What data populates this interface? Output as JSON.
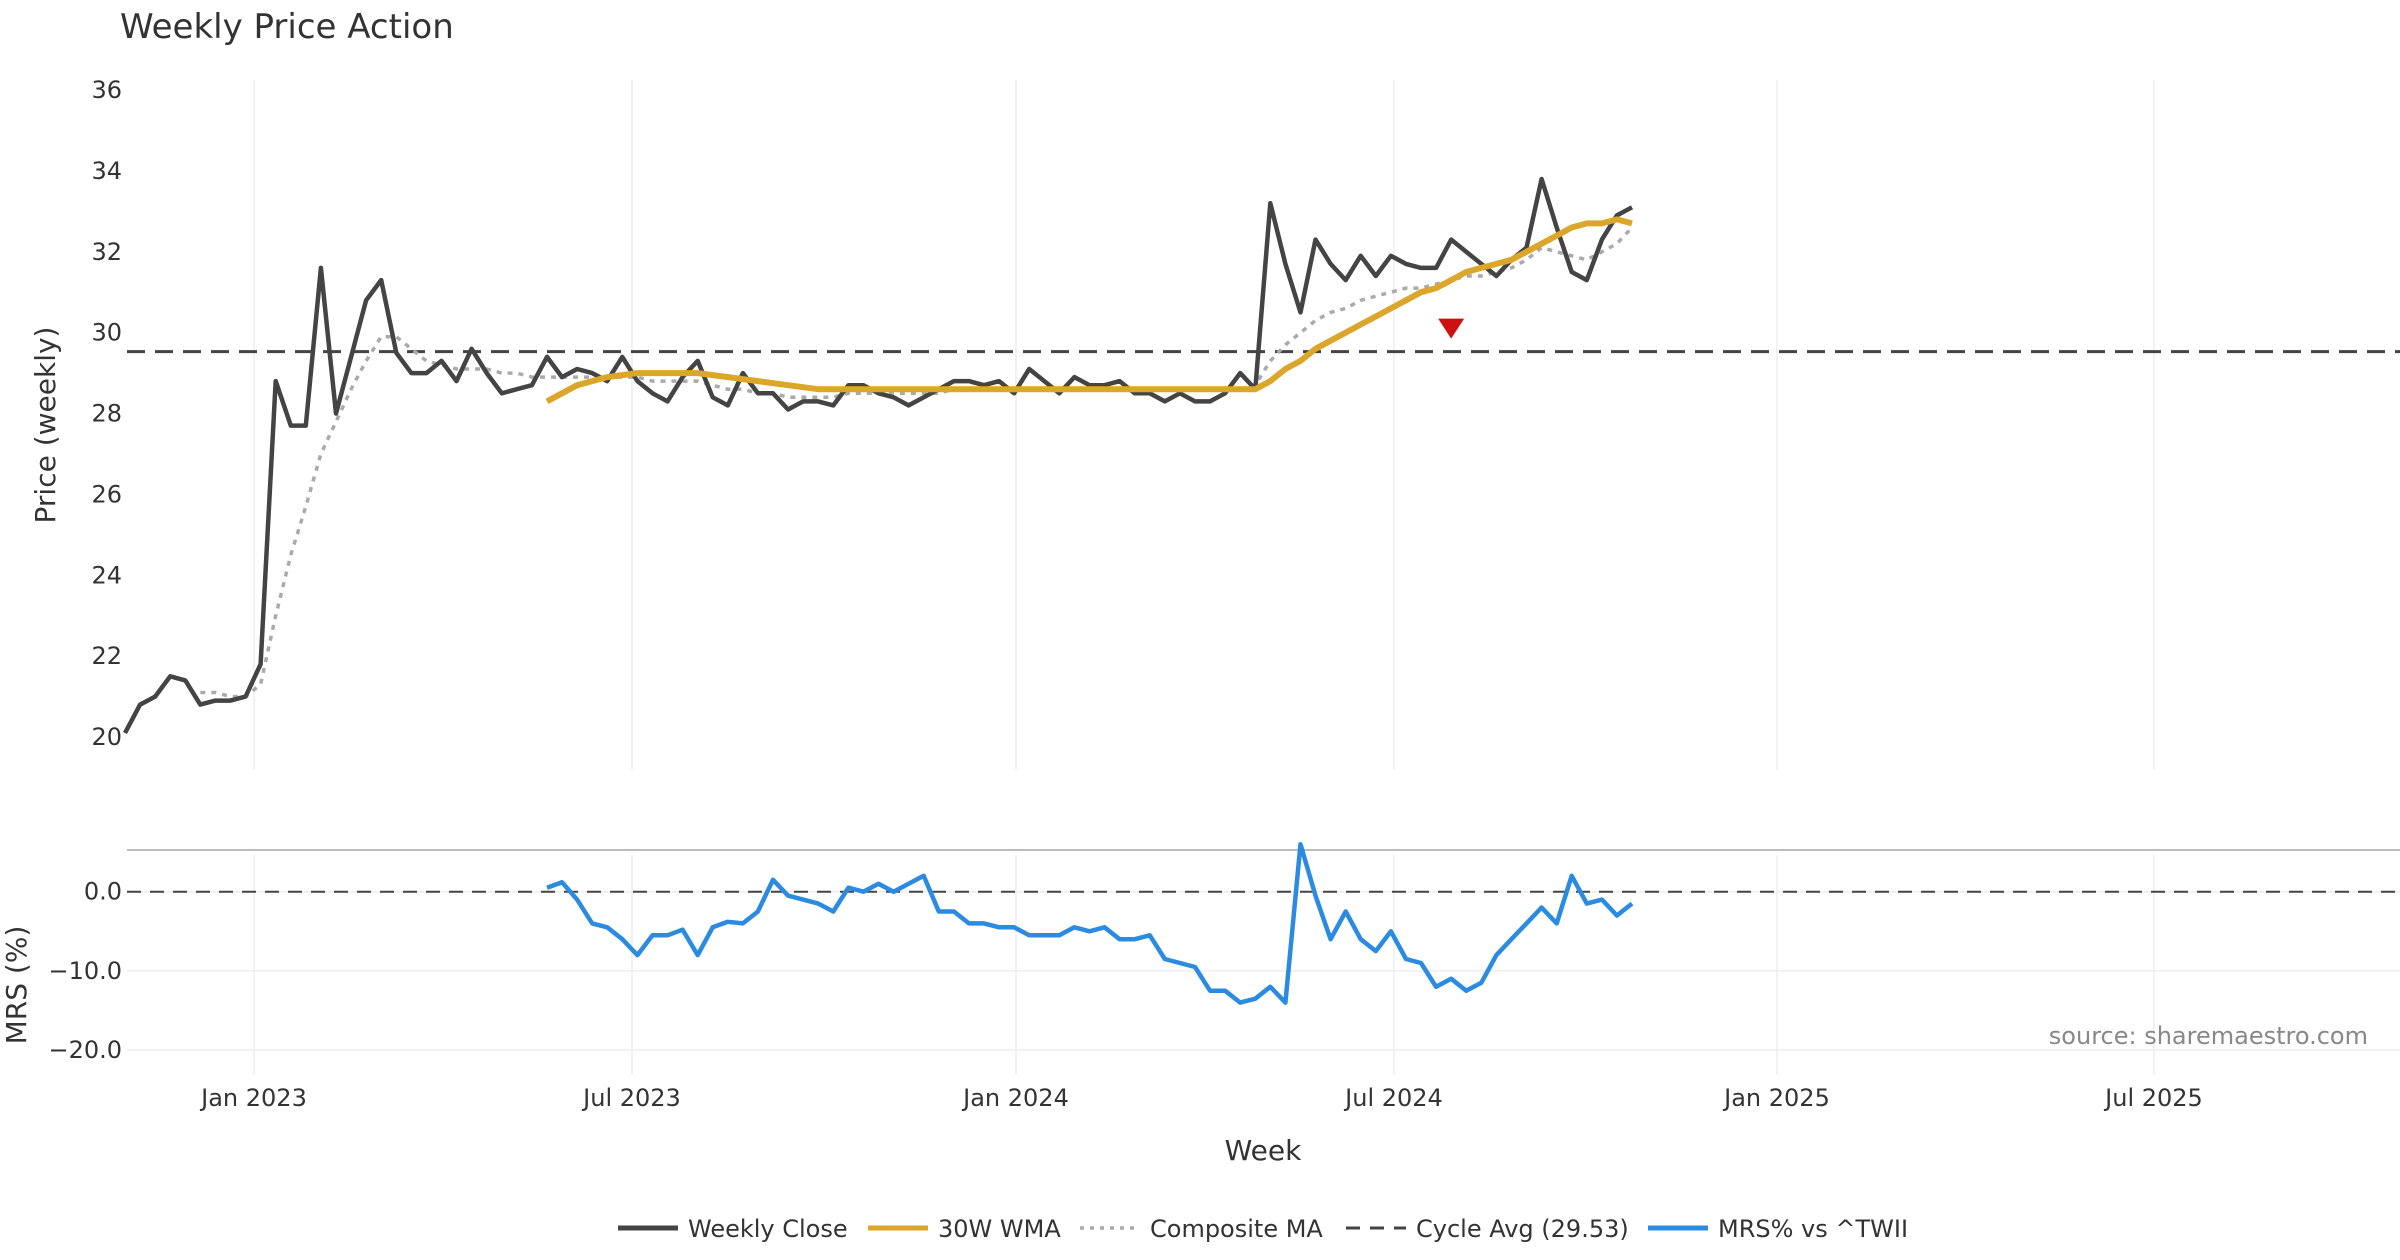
{
  "chart_data": {
    "type": "line",
    "title": "Weekly Price Action",
    "xlabel": "Week",
    "x_ticks": [
      "Jan 2023",
      "Jul 2023",
      "Jan 2024",
      "Jul 2024",
      "Jan 2025",
      "Jul 2025"
    ],
    "source": "source: sharemaestro.com",
    "panels": {
      "price": {
        "ylabel": "Price (weekly)",
        "ylim": [
          20,
          36
        ],
        "yticks": [
          20,
          22,
          24,
          26,
          28,
          30,
          32,
          34,
          36
        ],
        "cycle_avg": 29.53,
        "signal": {
          "type": "sell",
          "week_index": 88,
          "value": 30.0,
          "color": "#cc1111"
        }
      },
      "mrs": {
        "ylabel": "MRS (%)",
        "ylim": [
          -22,
          4
        ],
        "yticks": [
          0,
          -10,
          -20
        ],
        "ytick_labels": [
          "0.0",
          "−10.0",
          "−20.0"
        ]
      }
    },
    "week_count": 101,
    "series": [
      {
        "name": "Weekly Close",
        "color": "#444444",
        "values": [
          20.1,
          20.8,
          21.0,
          21.5,
          21.4,
          20.8,
          20.9,
          20.9,
          21.0,
          21.8,
          28.8,
          27.7,
          27.7,
          31.6,
          28.0,
          29.4,
          30.8,
          31.3,
          29.5,
          29.0,
          29.0,
          29.3,
          28.8,
          29.6,
          29.0,
          28.5,
          28.6,
          28.7,
          29.4,
          28.9,
          29.1,
          29.0,
          28.8,
          29.4,
          28.8,
          28.5,
          28.3,
          28.9,
          29.3,
          28.4,
          28.2,
          29.0,
          28.5,
          28.5,
          28.1,
          28.3,
          28.3,
          28.2,
          28.7,
          28.7,
          28.5,
          28.4,
          28.2,
          28.4,
          28.6,
          28.8,
          28.8,
          28.7,
          28.8,
          28.5,
          29.1,
          28.8,
          28.5,
          28.9,
          28.7,
          28.7,
          28.8,
          28.5,
          28.5,
          28.3,
          28.5,
          28.3,
          28.3,
          28.5,
          29.0,
          28.6,
          33.2,
          31.7,
          30.5,
          32.3,
          31.7,
          31.3,
          31.9,
          31.4,
          31.9,
          31.7,
          31.6,
          31.6,
          32.3,
          32.0,
          31.7,
          31.4,
          31.8,
          32.1,
          33.8,
          32.6,
          31.5,
          31.3,
          32.3,
          32.9,
          33.1
        ]
      },
      {
        "name": "30W WMA",
        "color": "#dba629",
        "values": [
          null,
          null,
          null,
          null,
          null,
          null,
          null,
          null,
          null,
          null,
          null,
          null,
          null,
          null,
          null,
          null,
          null,
          null,
          null,
          null,
          null,
          null,
          null,
          null,
          null,
          null,
          null,
          null,
          28.3,
          28.5,
          28.7,
          28.8,
          28.9,
          28.95,
          29.0,
          29.0,
          29.0,
          29.0,
          29.0,
          28.95,
          28.9,
          28.85,
          28.8,
          28.75,
          28.7,
          28.65,
          28.6,
          28.6,
          28.6,
          28.6,
          28.6,
          28.6,
          28.6,
          28.6,
          28.6,
          28.6,
          28.6,
          28.6,
          28.6,
          28.6,
          28.6,
          28.6,
          28.6,
          28.6,
          28.6,
          28.6,
          28.6,
          28.6,
          28.6,
          28.6,
          28.6,
          28.6,
          28.6,
          28.6,
          28.6,
          28.6,
          28.8,
          29.1,
          29.3,
          29.6,
          29.8,
          30.0,
          30.2,
          30.4,
          30.6,
          30.8,
          31.0,
          31.1,
          31.3,
          31.5,
          31.6,
          31.7,
          31.8,
          32.0,
          32.2,
          32.4,
          32.6,
          32.7,
          32.7,
          32.8,
          32.7
        ]
      },
      {
        "name": "Composite MA",
        "color": "#aaaaaa",
        "values": [
          null,
          null,
          null,
          null,
          null,
          21.1,
          21.1,
          21.0,
          21.0,
          21.3,
          23.0,
          24.5,
          25.7,
          27.0,
          27.8,
          28.6,
          29.3,
          29.9,
          29.9,
          29.6,
          29.3,
          29.2,
          29.1,
          29.1,
          29.1,
          29.0,
          29.0,
          28.9,
          28.9,
          28.9,
          28.9,
          28.9,
          28.9,
          28.9,
          28.9,
          28.8,
          28.8,
          28.8,
          28.8,
          28.7,
          28.6,
          28.6,
          28.5,
          28.5,
          28.4,
          28.4,
          28.4,
          28.4,
          28.5,
          28.5,
          28.5,
          28.5,
          28.5,
          28.5,
          28.5,
          28.6,
          28.6,
          28.6,
          28.6,
          28.6,
          28.6,
          28.6,
          28.6,
          28.6,
          28.6,
          28.6,
          28.6,
          28.6,
          28.6,
          28.6,
          28.6,
          28.6,
          28.6,
          28.6,
          28.6,
          28.7,
          29.3,
          29.7,
          30.0,
          30.3,
          30.5,
          30.6,
          30.8,
          30.9,
          31.0,
          31.1,
          31.1,
          31.2,
          31.3,
          31.4,
          31.4,
          31.5,
          31.6,
          31.8,
          32.1,
          32.0,
          31.9,
          31.8,
          32.0,
          32.2,
          32.6
        ]
      },
      {
        "name": "Cycle Avg (29.53)",
        "color": "#444444",
        "values": [
          29.53
        ]
      },
      {
        "name": "MRS% vs ^TWII",
        "color": "#2b8be0",
        "values": [
          null,
          null,
          null,
          null,
          null,
          null,
          null,
          null,
          null,
          null,
          null,
          null,
          null,
          null,
          null,
          null,
          null,
          null,
          null,
          null,
          null,
          null,
          null,
          null,
          null,
          null,
          null,
          null,
          0.5,
          1.2,
          -1.0,
          -4.0,
          -4.5,
          -6.0,
          -8.0,
          -5.5,
          -5.5,
          -4.8,
          -8.0,
          -4.5,
          -3.8,
          -4.0,
          -2.5,
          1.5,
          -0.5,
          -1.0,
          -1.5,
          -2.5,
          0.5,
          0.0,
          1.0,
          0.0,
          1.0,
          2.0,
          -2.5,
          -2.5,
          -4.0,
          -4.0,
          -4.5,
          -4.5,
          -5.5,
          -5.5,
          -5.5,
          -4.5,
          -5.0,
          -4.5,
          -6.0,
          -6.0,
          -5.5,
          -8.5,
          -9.0,
          -9.5,
          -12.5,
          -12.5,
          -14.0,
          -13.5,
          -12.0,
          -14.0,
          6.0,
          -0.5,
          -6.0,
          -2.5,
          -6.0,
          -7.5,
          -5.0,
          -8.5,
          -9.0,
          -12.0,
          -11.0,
          -12.5,
          -11.5,
          -8.0,
          -6.0,
          -4.0,
          -2.0,
          -4.0,
          2.0,
          -1.5,
          -1.0,
          -3.0,
          -1.5
        ]
      }
    ],
    "legend": [
      {
        "label": "Weekly Close",
        "style": "solid",
        "color": "#444444"
      },
      {
        "label": "30W WMA",
        "style": "solid",
        "color": "#dba629"
      },
      {
        "label": "Composite MA",
        "style": "dotted",
        "color": "#aaaaaa"
      },
      {
        "label": "Cycle Avg (29.53)",
        "style": "dashed",
        "color": "#444444"
      },
      {
        "label": "MRS% vs ^TWII",
        "style": "solid",
        "color": "#2b8be0"
      }
    ],
    "legend_position": "bottom-center"
  }
}
